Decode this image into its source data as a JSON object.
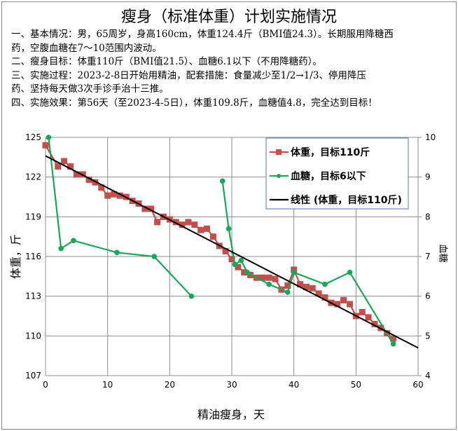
{
  "title": "瘦身（标准体重）计划实施情况",
  "description": [
    "一、基本情况：男，65周岁，身高160cm，体重124.4斤（BMI值24.3）。长期服用降糖西",
    "药，空腹血糖在7～10范围内波动。",
    "二、瘦身目标：体重110斤（BMI值21.5）、血糖6.1以下（不用降糖药）。",
    "三、实施过程：2023-2-8日开始用精油，配套措施：食量减少至1/2→1/3、停用降压",
    "药、坚持每天做3次手诊手治十三推。",
    "四、实施效果：第56天（至2023-4-5日），体重109.8斤，血糖值4.8，完全达到目标！"
  ],
  "chart_data": {
    "type": "line",
    "xlabel": "精油瘦身，天",
    "ylabel": "体重，斤",
    "y2label": "血糖",
    "xlim": [
      0,
      60
    ],
    "xticks": [
      0,
      10,
      20,
      30,
      40,
      50,
      60
    ],
    "ylim": [
      107,
      125
    ],
    "yticks": [
      107,
      110,
      113,
      116,
      119,
      122,
      125
    ],
    "y2lim": [
      4,
      10
    ],
    "y2ticks": [
      4,
      5,
      6,
      7,
      8,
      9,
      10
    ],
    "grid": true,
    "legend_position": "top-right",
    "series": [
      {
        "name": "体重，目标110斤",
        "axis": "left",
        "color": "#C0504D",
        "marker": "square",
        "x": [
          0,
          2,
          3,
          4,
          5,
          6,
          7,
          8,
          9,
          10,
          11,
          12,
          13,
          14,
          15,
          16,
          17,
          18,
          19,
          20,
          21,
          22,
          23,
          24,
          25,
          26,
          27,
          28,
          29,
          30,
          31,
          32,
          33,
          34,
          35,
          36,
          37,
          38,
          39,
          40,
          41,
          42,
          43,
          44,
          45,
          46,
          47,
          48,
          49,
          50,
          51,
          52,
          53,
          54,
          55,
          56
        ],
        "y": [
          124.4,
          122.8,
          123.2,
          122.8,
          122.2,
          122.2,
          121.8,
          121.6,
          121.2,
          120.6,
          120.7,
          120.6,
          120.5,
          120.2,
          120.0,
          119.6,
          119.6,
          118.6,
          119.0,
          118.8,
          118.6,
          118.4,
          118.6,
          118.4,
          118.0,
          118.1,
          117.5,
          116.8,
          116.4,
          115.8,
          115.2,
          114.8,
          114.6,
          114.4,
          114.4,
          114.4,
          114.3,
          113.5,
          113.8,
          115.0,
          113.9,
          113.7,
          113.6,
          113.2,
          112.9,
          112.5,
          112.4,
          112.7,
          112.4,
          111.5,
          111.8,
          111.4,
          110.9,
          110.6,
          110.2,
          109.8
        ]
      },
      {
        "name": "血糖，目标6以下",
        "axis": "right",
        "color": "#1AA55A",
        "marker": "circle",
        "x": [
          0.5,
          2.5,
          4.5,
          11.5,
          17.5,
          23.5,
          null,
          28.5,
          29.5,
          30.5,
          31.5,
          32.5,
          36,
          39,
          40,
          45,
          49,
          56
        ],
        "y": [
          10.0,
          7.2,
          7.4,
          7.1,
          7.0,
          6.0,
          null,
          8.9,
          7.7,
          6.8,
          6.9,
          6.6,
          6.3,
          6.1,
          6.6,
          6.3,
          6.6,
          4.8
        ]
      },
      {
        "name": "线性 (体重，目标110斤)",
        "axis": "left",
        "color": "#000000",
        "marker": "none",
        "trend": true,
        "x": [
          0,
          60
        ],
        "y": [
          123.6,
          109.1
        ]
      }
    ]
  }
}
